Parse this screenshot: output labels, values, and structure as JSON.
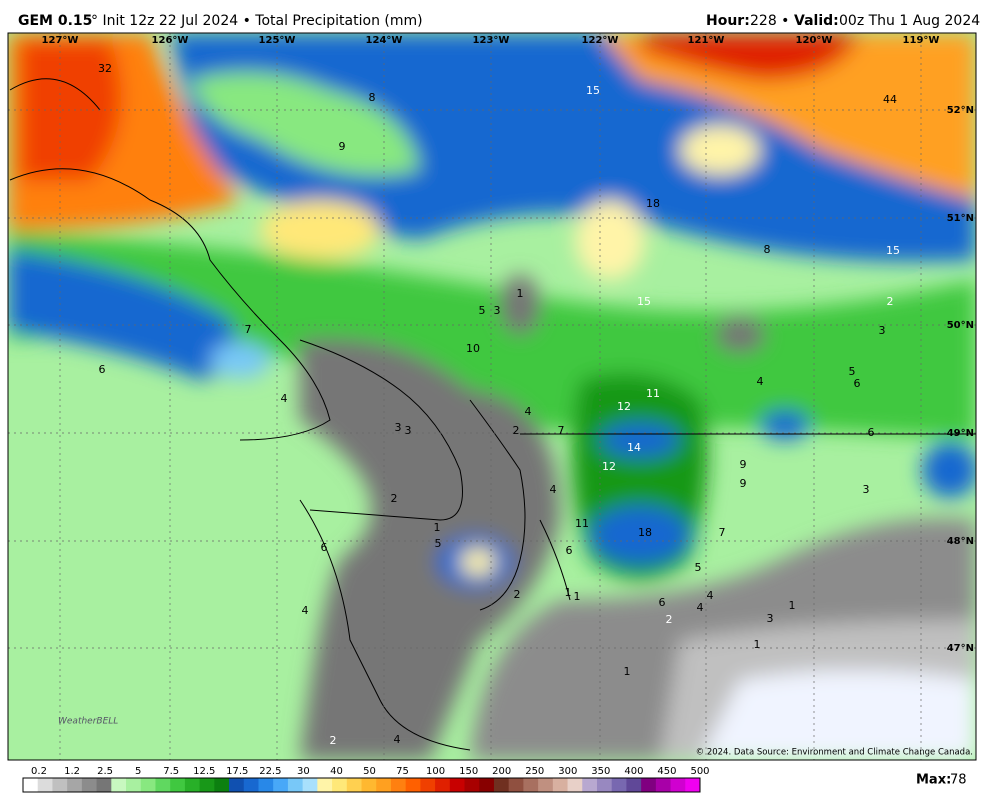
{
  "header": {
    "model": "GEM 0.15",
    "init": "° Init 12z 22 Jul 2024 • Total Precipitation (mm)",
    "hour_label": "Hour:",
    "hour": "228 •",
    "valid_label": "Valid:",
    "valid": "00z Thu 1 Aug 2024"
  },
  "map": {
    "longitudes": [
      "127°W",
      "126°W",
      "125°W",
      "124°W",
      "123°W",
      "122°W",
      "121°W",
      "120°W",
      "119°W"
    ],
    "latitudes": [
      "52°N",
      "51°N",
      "50°N",
      "49°N",
      "48°N",
      "47°N"
    ],
    "contour_labels": [
      "32",
      "8",
      "15",
      "44",
      "9",
      "18",
      "8",
      "15",
      "1",
      "5",
      "3",
      "15",
      "2",
      "3",
      "7",
      "10",
      "6",
      "5",
      "6",
      "4",
      "11",
      "4",
      "12",
      "4",
      "3",
      "3",
      "2",
      "7",
      "6",
      "14",
      "12",
      "9",
      "9",
      "4",
      "3",
      "2",
      "11",
      "18",
      "7",
      "1",
      "5",
      "6",
      "6",
      "5",
      "4",
      "4",
      "1",
      "1",
      "2",
      "6",
      "4",
      "1",
      "3",
      "2",
      "1",
      "1",
      "2",
      "4"
    ],
    "logo": "WeatherBELL",
    "copyright": "© 2024. Data Source: Environment and Climate Change Canada."
  },
  "colorbar": {
    "labels": [
      "0.2",
      "1.2",
      "2.5",
      "5",
      "7.5",
      "12.5",
      "17.5",
      "22.5",
      "30",
      "40",
      "50",
      "75",
      "100",
      "150",
      "200",
      "250",
      "300",
      "350",
      "400",
      "450",
      "500"
    ],
    "colors": [
      "#ffffff",
      "#dcdcdc",
      "#c0c0c0",
      "#a6a6a6",
      "#8c8c8c",
      "#767676",
      "#c8f8c0",
      "#a8f0a0",
      "#88e880",
      "#60d860",
      "#40c840",
      "#28b028",
      "#189818",
      "#0c8010",
      "#1050b0",
      "#1868d0",
      "#2888e8",
      "#48a8f8",
      "#78c8f8",
      "#a8e0fc",
      "#fff4a8",
      "#ffe878",
      "#ffd050",
      "#ffb830",
      "#ffa020",
      "#ff8010",
      "#ff6000",
      "#f04000",
      "#e02000",
      "#c80000",
      "#a80000",
      "#880000",
      "#703020",
      "#905040",
      "#a87060",
      "#c09080",
      "#d8b0a0",
      "#e8d0c8",
      "#b8a8d0",
      "#9888c0",
      "#7868b0",
      "#604898",
      "#800080",
      "#a800a8",
      "#d000d0",
      "#f000f0"
    ]
  },
  "footer": {
    "max_label": "Max:",
    "max": "78"
  }
}
